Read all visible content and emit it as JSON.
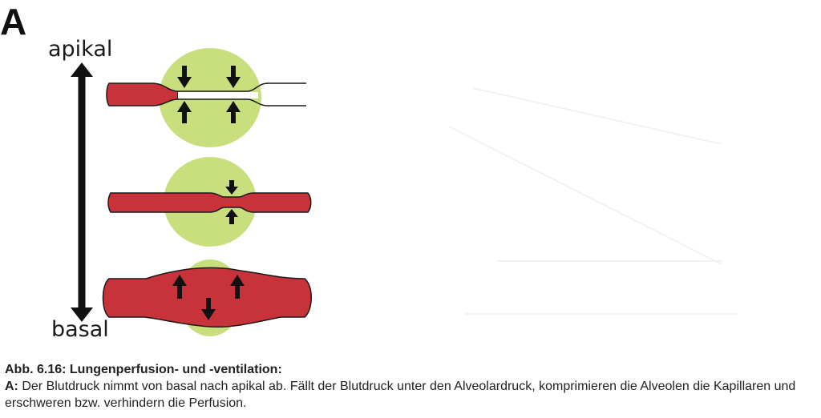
{
  "figure": {
    "panel_letter": "A",
    "axis_top_label": "apikal",
    "axis_bottom_label": "basal",
    "colors": {
      "alveolus": "#c9df7e",
      "blood": "#c8323a",
      "outline": "#1a1a1a",
      "arrow": "#111111",
      "air": "#ffffff"
    },
    "rows": [
      {
        "position": "apikal",
        "state": "capillary compressed",
        "arrows_down": 2,
        "arrows_up": 2
      },
      {
        "position": "mid",
        "state": "capillary narrowed",
        "arrows_down": 1,
        "arrows_up": 1
      },
      {
        "position": "basal",
        "state": "capillary distended",
        "arrows_up": 2,
        "arrows_down": 1
      }
    ]
  },
  "caption": {
    "title": "Abb. 6.16: Lungenperfusion- und -ventilation:",
    "prefix": "A:",
    "text": " Der Blutdruck nimmt von basal nach apikal ab. Fällt der Blutdruck unter den Alveolardruck, komprimieren die Alveolen die Kapillaren und erschweren bzw. verhindern die Perfusion."
  }
}
